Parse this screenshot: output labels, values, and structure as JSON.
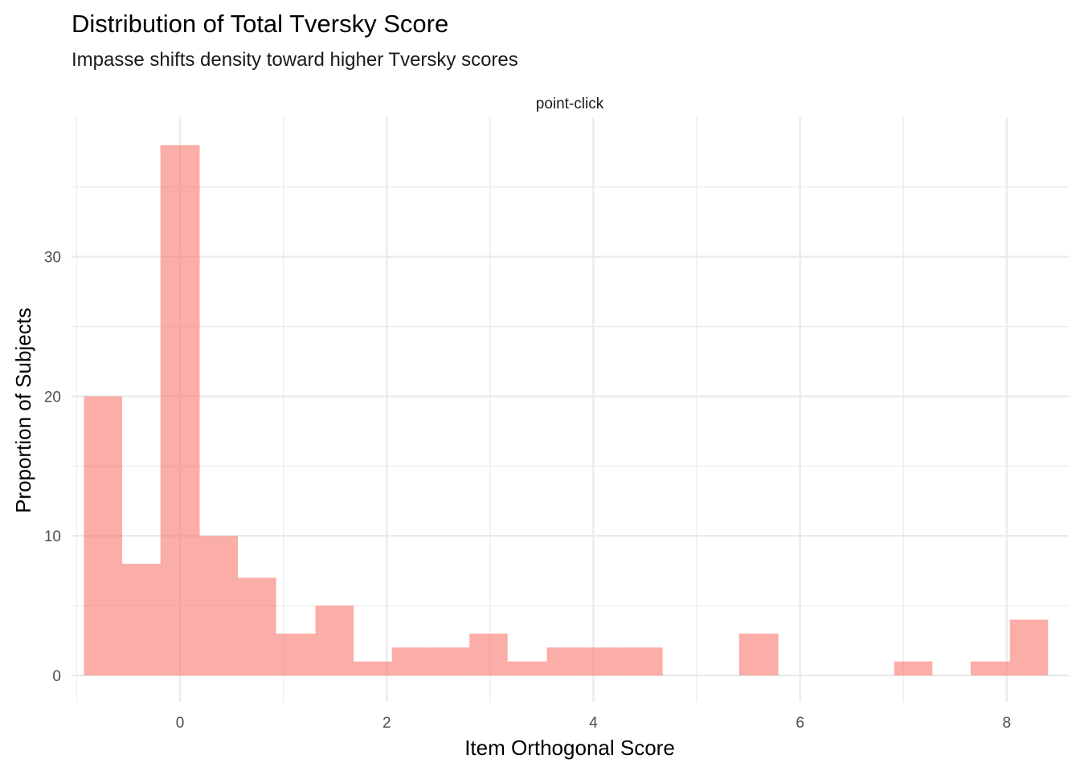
{
  "chart_data": {
    "type": "bar",
    "title": "Distribution of Total Tversky Score",
    "subtitle": "Impasse shifts density toward higher Tversky scores",
    "facet_label": "point-click",
    "xlabel": "Item Orthogonal Score",
    "ylabel": "Proportion of Subjects",
    "xlim": [
      -1.05,
      8.6
    ],
    "ylim": [
      -1.9,
      40
    ],
    "x_ticks": [
      0,
      2,
      4,
      6,
      8
    ],
    "y_ticks": [
      0,
      10,
      20,
      30
    ],
    "grid": true,
    "legend": "none",
    "bin_width": 0.3733,
    "series": [
      {
        "color": "#F8766D",
        "bins": [
          {
            "x0": -0.93,
            "x1": -0.56,
            "value": 20
          },
          {
            "x0": -0.56,
            "x1": -0.19,
            "value": 8
          },
          {
            "x0": -0.19,
            "x1": 0.19,
            "value": 38
          },
          {
            "x0": 0.19,
            "x1": 0.56,
            "value": 10
          },
          {
            "x0": 0.56,
            "x1": 0.93,
            "value": 7
          },
          {
            "x0": 0.93,
            "x1": 1.31,
            "value": 3
          },
          {
            "x0": 1.31,
            "x1": 1.68,
            "value": 5
          },
          {
            "x0": 1.68,
            "x1": 2.05,
            "value": 1
          },
          {
            "x0": 2.05,
            "x1": 2.43,
            "value": 2
          },
          {
            "x0": 2.43,
            "x1": 2.8,
            "value": 2
          },
          {
            "x0": 2.8,
            "x1": 3.17,
            "value": 3
          },
          {
            "x0": 3.17,
            "x1": 3.55,
            "value": 1
          },
          {
            "x0": 3.55,
            "x1": 3.92,
            "value": 2
          },
          {
            "x0": 3.92,
            "x1": 4.29,
            "value": 2
          },
          {
            "x0": 4.29,
            "x1": 4.67,
            "value": 2
          },
          {
            "x0": 4.67,
            "x1": 5.04,
            "value": 0
          },
          {
            "x0": 5.04,
            "x1": 5.41,
            "value": 0
          },
          {
            "x0": 5.41,
            "x1": 5.79,
            "value": 3
          },
          {
            "x0": 5.79,
            "x1": 6.16,
            "value": 0
          },
          {
            "x0": 6.16,
            "x1": 6.53,
            "value": 0
          },
          {
            "x0": 6.53,
            "x1": 6.91,
            "value": 0
          },
          {
            "x0": 6.91,
            "x1": 7.28,
            "value": 1
          },
          {
            "x0": 7.28,
            "x1": 7.65,
            "value": 0
          },
          {
            "x0": 7.65,
            "x1": 8.03,
            "value": 1
          },
          {
            "x0": 8.03,
            "x1": 8.4,
            "value": 4
          }
        ]
      }
    ]
  }
}
